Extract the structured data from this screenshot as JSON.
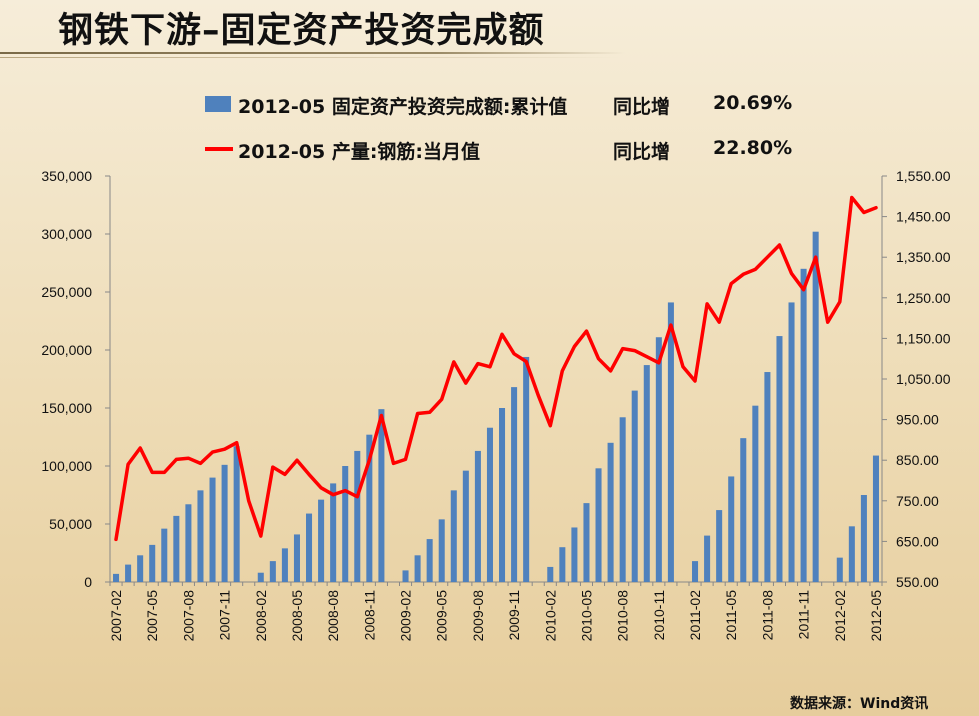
{
  "title": "钢铁下游–固定资产投资完成额",
  "legend": [
    {
      "label": "2012-05 固定资产投资完成额:累计值",
      "yoy_label": "同比增",
      "yoy_value": "20.69%"
    },
    {
      "label": "2012-05 产量:钢筋:当月值",
      "yoy_label": "同比增",
      "yoy_value": "22.80%"
    }
  ],
  "source": "数据来源：Wind资讯",
  "colors": {
    "bar": "#4f81bd",
    "line": "#ff0000"
  },
  "chart_data": {
    "type": "bar+line",
    "months": [
      "2007-02",
      "2007-03",
      "2007-04",
      "2007-05",
      "2007-06",
      "2007-07",
      "2007-08",
      "2007-09",
      "2007-10",
      "2007-11",
      "2007-12",
      "2008-01",
      "2008-02",
      "2008-03",
      "2008-04",
      "2008-05",
      "2008-06",
      "2008-07",
      "2008-08",
      "2008-09",
      "2008-10",
      "2008-11",
      "2008-12",
      "2009-01",
      "2009-02",
      "2009-03",
      "2009-04",
      "2009-05",
      "2009-06",
      "2009-07",
      "2009-08",
      "2009-09",
      "2009-10",
      "2009-11",
      "2009-12",
      "2010-01",
      "2010-02",
      "2010-03",
      "2010-04",
      "2010-05",
      "2010-06",
      "2010-07",
      "2010-08",
      "2010-09",
      "2010-10",
      "2010-11",
      "2010-12",
      "2011-01",
      "2011-02",
      "2011-03",
      "2011-04",
      "2011-05",
      "2011-06",
      "2011-07",
      "2011-08",
      "2011-09",
      "2011-10",
      "2011-11",
      "2011-12",
      "2012-01",
      "2012-02",
      "2012-03",
      "2012-04",
      "2012-05"
    ],
    "x_tick_labels": [
      "2007-02",
      "2007-05",
      "2007-08",
      "2007-11",
      "2008-02",
      "2008-05",
      "2008-08",
      "2008-11",
      "2009-02",
      "2009-05",
      "2009-08",
      "2009-11",
      "2010-02",
      "2010-05",
      "2010-08",
      "2010-11",
      "2011-02",
      "2011-05",
      "2011-08",
      "2011-11",
      "2012-02",
      "2012-05"
    ],
    "y_left": {
      "min": 0,
      "max": 350000,
      "ticks": [
        "0",
        "50,000",
        "100,000",
        "150,000",
        "200,000",
        "250,000",
        "300,000",
        "350,000"
      ]
    },
    "y_right": {
      "min": 550,
      "max": 1550,
      "ticks": [
        "550.00",
        "650.00",
        "750.00",
        "850.00",
        "950.00",
        "1,050.00",
        "1,150.00",
        "1,250.00",
        "1,350.00",
        "1,450.00",
        "1,550.00"
      ]
    },
    "series": [
      {
        "name": "2012-05 固定资产投资完成额:累计值",
        "type": "bar",
        "axis": "left",
        "values": [
          7000,
          15000,
          23000,
          32000,
          46000,
          57000,
          67000,
          79000,
          90000,
          101000,
          117000,
          null,
          8000,
          18000,
          29000,
          41000,
          59000,
          71000,
          85000,
          100000,
          113000,
          127000,
          149000,
          null,
          10000,
          23000,
          37000,
          54000,
          79000,
          96000,
          113000,
          133000,
          150000,
          168000,
          194000,
          null,
          13000,
          30000,
          47000,
          68000,
          98000,
          120000,
          142000,
          165000,
          187000,
          211000,
          241000,
          null,
          18000,
          40000,
          62000,
          91000,
          124000,
          152000,
          181000,
          212000,
          241000,
          270000,
          302000,
          null,
          21000,
          48000,
          75000,
          109000
        ]
      },
      {
        "name": "2012-05 产量:钢筋:当月值",
        "type": "line",
        "axis": "right",
        "values": [
          655,
          840,
          880,
          820,
          820,
          852,
          855,
          842,
          870,
          877,
          893,
          750,
          663,
          833,
          815,
          850,
          815,
          782,
          765,
          775,
          760,
          850,
          960,
          842,
          852,
          965,
          968,
          1000,
          1092,
          1040,
          1088,
          1080,
          1160,
          1112,
          1093,
          1010,
          935,
          1070,
          1130,
          1168,
          1100,
          1070,
          1125,
          1120,
          1105,
          1090,
          1183,
          1080,
          1045,
          1235,
          1190,
          1285,
          1308,
          1320,
          1350,
          1380,
          1310,
          1270,
          1350,
          1190,
          1240,
          1497,
          1460,
          1472
        ]
      }
    ]
  }
}
